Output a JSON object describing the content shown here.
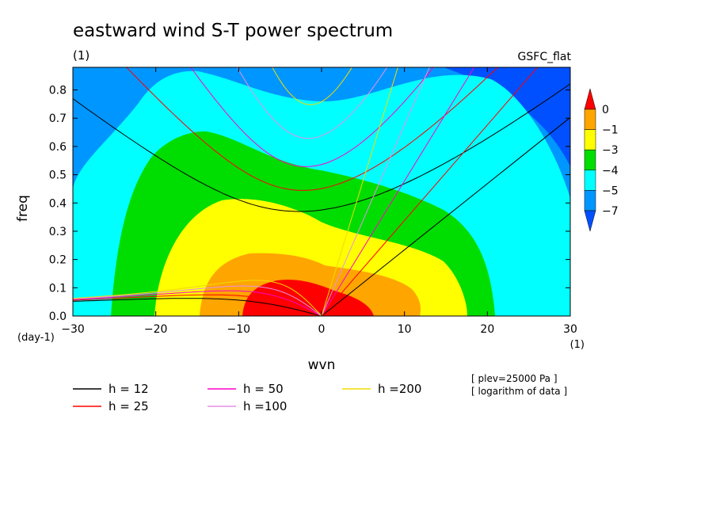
{
  "chart_data": {
    "type": "heatmap",
    "title": "eastward wind S-T power spectrum",
    "title_units": "(1)",
    "source_label": "GSFC_flat",
    "xlabel": "wvn",
    "x_units": "(1)",
    "ylabel": "freq",
    "y_units": "(day-1)",
    "xlim": [
      -30,
      30
    ],
    "ylim": [
      0,
      0.88
    ],
    "x_ticks": [
      -30,
      -20,
      -10,
      0,
      10,
      20,
      30
    ],
    "x_tick_labels": [
      "-30",
      "-20",
      "-10",
      "0",
      "10",
      "20",
      "30"
    ],
    "y_ticks": [
      0,
      0.1,
      0.2,
      0.3,
      0.4,
      0.5,
      0.6,
      0.7,
      0.8
    ],
    "y_tick_labels": [
      "0.0",
      "0.1",
      "0.2",
      "0.3",
      "0.4",
      "0.5",
      "0.6",
      "0.7",
      "0.8"
    ],
    "colorbar": {
      "levels": [
        0,
        -1,
        -3,
        -4,
        -5,
        -7
      ],
      "level_labels": [
        "0",
        "−1",
        "−3",
        "−4",
        "−5",
        "−7"
      ],
      "colors": [
        "#ff0000",
        "#ffa500",
        "#ffff00",
        "#00dd00",
        "#00ffff",
        "#0096ff",
        "#0050ff"
      ],
      "bands": [
        {
          "range": "> 0",
          "color": "#ff0000"
        },
        {
          "range": "-1 to 0",
          "color": "#ffa500"
        },
        {
          "range": "-3 to -1",
          "color": "#ffff00"
        },
        {
          "range": "-4 to -3",
          "color": "#00dd00"
        },
        {
          "range": "-5 to -4",
          "color": "#00ffff"
        },
        {
          "range": "-7 to -5",
          "color": "#0096ff"
        },
        {
          "range": "< -7",
          "color": "#0050ff"
        }
      ]
    },
    "dispersion_curves": [
      {
        "h": 12,
        "label": "h = 12",
        "color": "#000000"
      },
      {
        "h": 25,
        "label": "h = 25",
        "color": "#ff0000"
      },
      {
        "h": 50,
        "label": "h = 50",
        "color": "#ff00c8"
      },
      {
        "h": 100,
        "label": "h =100",
        "color": "#e690e6"
      },
      {
        "h": 200,
        "label": "h =200",
        "color": "#f0dc00"
      }
    ],
    "annotations": [
      "[ plev=25000 Pa ]",
      "[ logarithm of data ]"
    ]
  }
}
